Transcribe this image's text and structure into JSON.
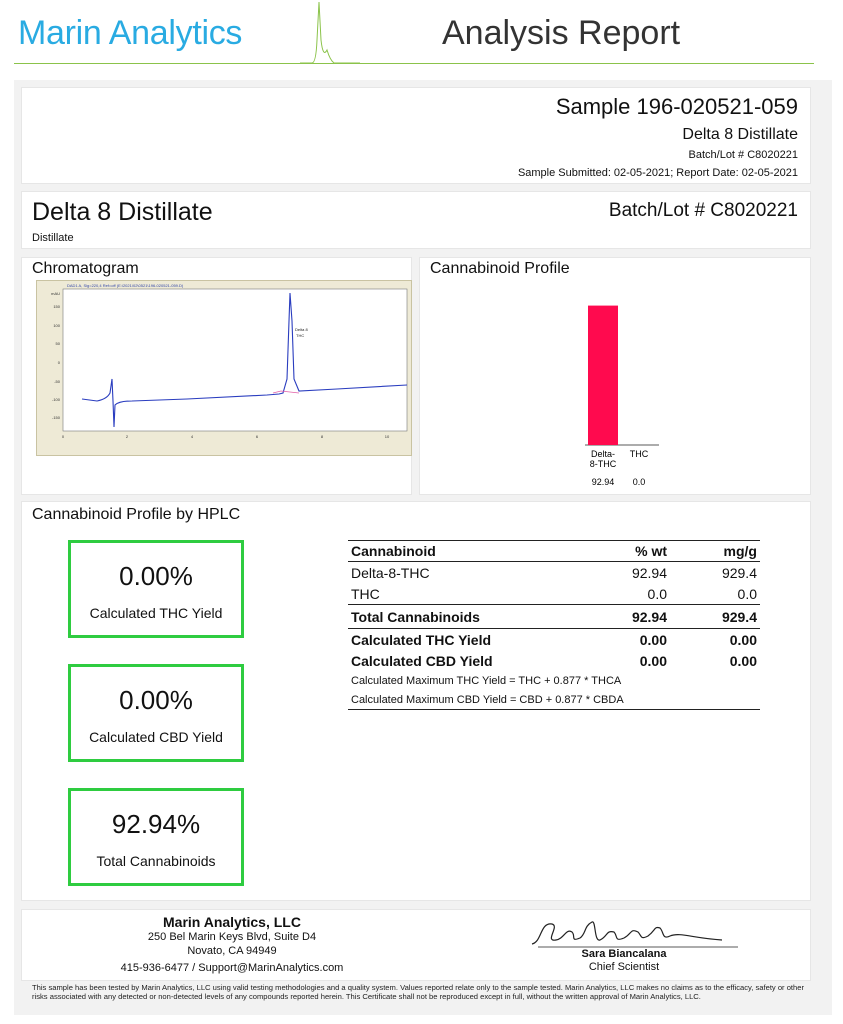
{
  "header": {
    "brand": "Marin Analytics",
    "title": "Analysis Report"
  },
  "sample": {
    "id": "Sample 196-020521-059",
    "name": "Delta 8 Distillate",
    "batch": "Batch/Lot # C8020221",
    "dates": "Sample Submitted: 02-05-2021;  Report Date: 02-05-2021"
  },
  "product": {
    "name": "Delta 8 Distillate",
    "type": "Distillate",
    "batch": "Batch/Lot # C8020221"
  },
  "chromatogram": {
    "title": "Chromatogram",
    "header_text": "DAD1 A, Sig=220,4 Ref=off (E:\\2021\\02\\0521\\196-020521-059.D)",
    "peak_label_1": "Delta 8",
    "peak_label_2": "THC",
    "y_ticks": [
      "mAU",
      "150",
      "100",
      "50",
      "0",
      "-50",
      "-100",
      "-150"
    ],
    "x_ticks": [
      "0",
      "2",
      "4",
      "6",
      "8",
      "10"
    ]
  },
  "profile": {
    "title": "Cannabinoid Profile",
    "chart_data": {
      "type": "bar",
      "categories": [
        "Delta-8-THC",
        "THC"
      ],
      "values": [
        92.94,
        0.0
      ],
      "value_labels": [
        "92.94",
        "0.0"
      ],
      "label_lines": [
        [
          "Delta-",
          "8-THC"
        ],
        [
          "THC"
        ]
      ],
      "ylim": [
        0,
        100
      ],
      "bar_color": "#ff0a4e"
    }
  },
  "hplc": {
    "title": "Cannabinoid Profile by HPLC",
    "kpis": [
      {
        "value": "0.00%",
        "label": "Calculated THC Yield"
      },
      {
        "value": "0.00%",
        "label": "Calculated CBD Yield"
      },
      {
        "value": "92.94%",
        "label": "Total Cannabinoids"
      }
    ],
    "table": {
      "headers": [
        "Cannabinoid",
        "% wt",
        "mg/g"
      ],
      "rows": [
        [
          "Delta-8-THC",
          "92.94",
          "929.4"
        ],
        [
          "THC",
          "0.0",
          "0.0"
        ]
      ],
      "total": [
        "Total Cannabinoids",
        "92.94",
        "929.4"
      ],
      "calc": [
        [
          "Calculated THC Yield",
          "0.00",
          "0.00"
        ],
        [
          "Calculated CBD Yield",
          "0.00",
          "0.00"
        ]
      ],
      "notes": [
        "Calculated Maximum THC Yield = THC + 0.877 * THCA",
        "Calculated Maximum CBD Yield = CBD + 0.877 * CBDA"
      ]
    }
  },
  "footer": {
    "company": "Marin Analytics, LLC",
    "address1": "250 Bel Marin Keys Blvd, Suite D4",
    "address2": "Novato, CA 94949",
    "contact": "415-936-6477 / Support@MarinAnalytics.com",
    "signer": "Sara Biancalana",
    "signer_title": "Chief Scientist",
    "disclaimer": "This sample has been tested by Marin Analytics, LLC using valid testing methodologies and a quality system.  Values reported relate only to the sample tested.  Marin Analytics, LLC makes no claims as to the efficacy, safety or other risks associated with any detected or non-detected levels of any compounds reported herein.  This Certificate shall not be reproduced except in full, without the written approval of Marin Analytics, LLC."
  },
  "colors": {
    "brand_blue": "#29abe2",
    "kpi_green": "#2ecc40",
    "accent_green": "#8bc34a"
  }
}
